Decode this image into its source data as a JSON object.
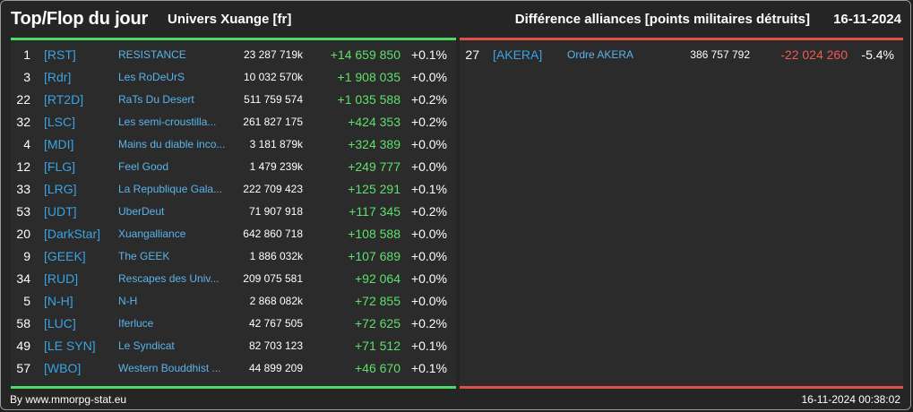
{
  "header": {
    "title": "Top/Flop du jour",
    "subtitle": "Univers Xuange [fr]",
    "ranking_title": "Différence alliances [points militaires détruits]",
    "date": "16-11-2024"
  },
  "top": [
    {
      "rank": "1",
      "tag": "[RST]",
      "name": "RESISTANCE",
      "points": "23 287 719k",
      "diff": "+14 659 850",
      "pct": "+0.1%"
    },
    {
      "rank": "3",
      "tag": "[Rdr]",
      "name": "Les RoDeUrS",
      "points": "10 032 570k",
      "diff": "+1 908 035",
      "pct": "+0.0%"
    },
    {
      "rank": "22",
      "tag": "[RT2D]",
      "name": "RaTs Du Desert",
      "points": "511 759 574",
      "diff": "+1 035 588",
      "pct": "+0.2%"
    },
    {
      "rank": "32",
      "tag": "[LSC]",
      "name": "Les semi-croustilla...",
      "points": "261 827 175",
      "diff": "+424 353",
      "pct": "+0.2%"
    },
    {
      "rank": "4",
      "tag": "[MDI]",
      "name": "Mains du diable inco...",
      "points": "3 181 879k",
      "diff": "+324 389",
      "pct": "+0.0%"
    },
    {
      "rank": "12",
      "tag": "[FLG]",
      "name": "Feel Good",
      "points": "1 479 239k",
      "diff": "+249 777",
      "pct": "+0.0%"
    },
    {
      "rank": "33",
      "tag": "[LRG]",
      "name": "La Republique Gala...",
      "points": "222 709 423",
      "diff": "+125 291",
      "pct": "+0.1%"
    },
    {
      "rank": "53",
      "tag": "[UDT]",
      "name": "UberDeut",
      "points": "71 907 918",
      "diff": "+117 345",
      "pct": "+0.2%"
    },
    {
      "rank": "20",
      "tag": "[DarkStar]",
      "name": "Xuangalliance",
      "points": "642 860 718",
      "diff": "+108 588",
      "pct": "+0.0%"
    },
    {
      "rank": "9",
      "tag": "[GEEK]",
      "name": "The GEEK",
      "points": "1 886 032k",
      "diff": "+107 689",
      "pct": "+0.0%"
    },
    {
      "rank": "34",
      "tag": "[RUD]",
      "name": "Rescapes des Univ...",
      "points": "209 075 581",
      "diff": "+92 064",
      "pct": "+0.0%"
    },
    {
      "rank": "5",
      "tag": "[N-H]",
      "name": "N-H",
      "points": "2 868 082k",
      "diff": "+72 855",
      "pct": "+0.0%"
    },
    {
      "rank": "58",
      "tag": "[LUC]",
      "name": "Iferluce",
      "points": "42 767 505",
      "diff": "+72 625",
      "pct": "+0.2%"
    },
    {
      "rank": "49",
      "tag": "[LE SYN]",
      "name": "Le Syndicat",
      "points": "82 703 123",
      "diff": "+71 512",
      "pct": "+0.1%"
    },
    {
      "rank": "57",
      "tag": "[WBO]",
      "name": "Western Bouddhist ...",
      "points": "44 899 209",
      "diff": "+46 670",
      "pct": "+0.1%"
    }
  ],
  "flop": [
    {
      "rank": "27",
      "tag": "[AKERA]",
      "name": "Ordre AKERA",
      "points": "386 757 792",
      "diff": "-22 024 260",
      "pct": "-5.4%"
    }
  ],
  "footer": {
    "source": "By www.mmorpg-stat.eu",
    "timestamp": "16-11-2024 00:38:02"
  },
  "colors": {
    "positive": "#5ee06b",
    "negative": "#ef5a54",
    "tag": "#3aa3e3",
    "top_accent": "#4cd964",
    "flop_accent": "#e0504a"
  }
}
